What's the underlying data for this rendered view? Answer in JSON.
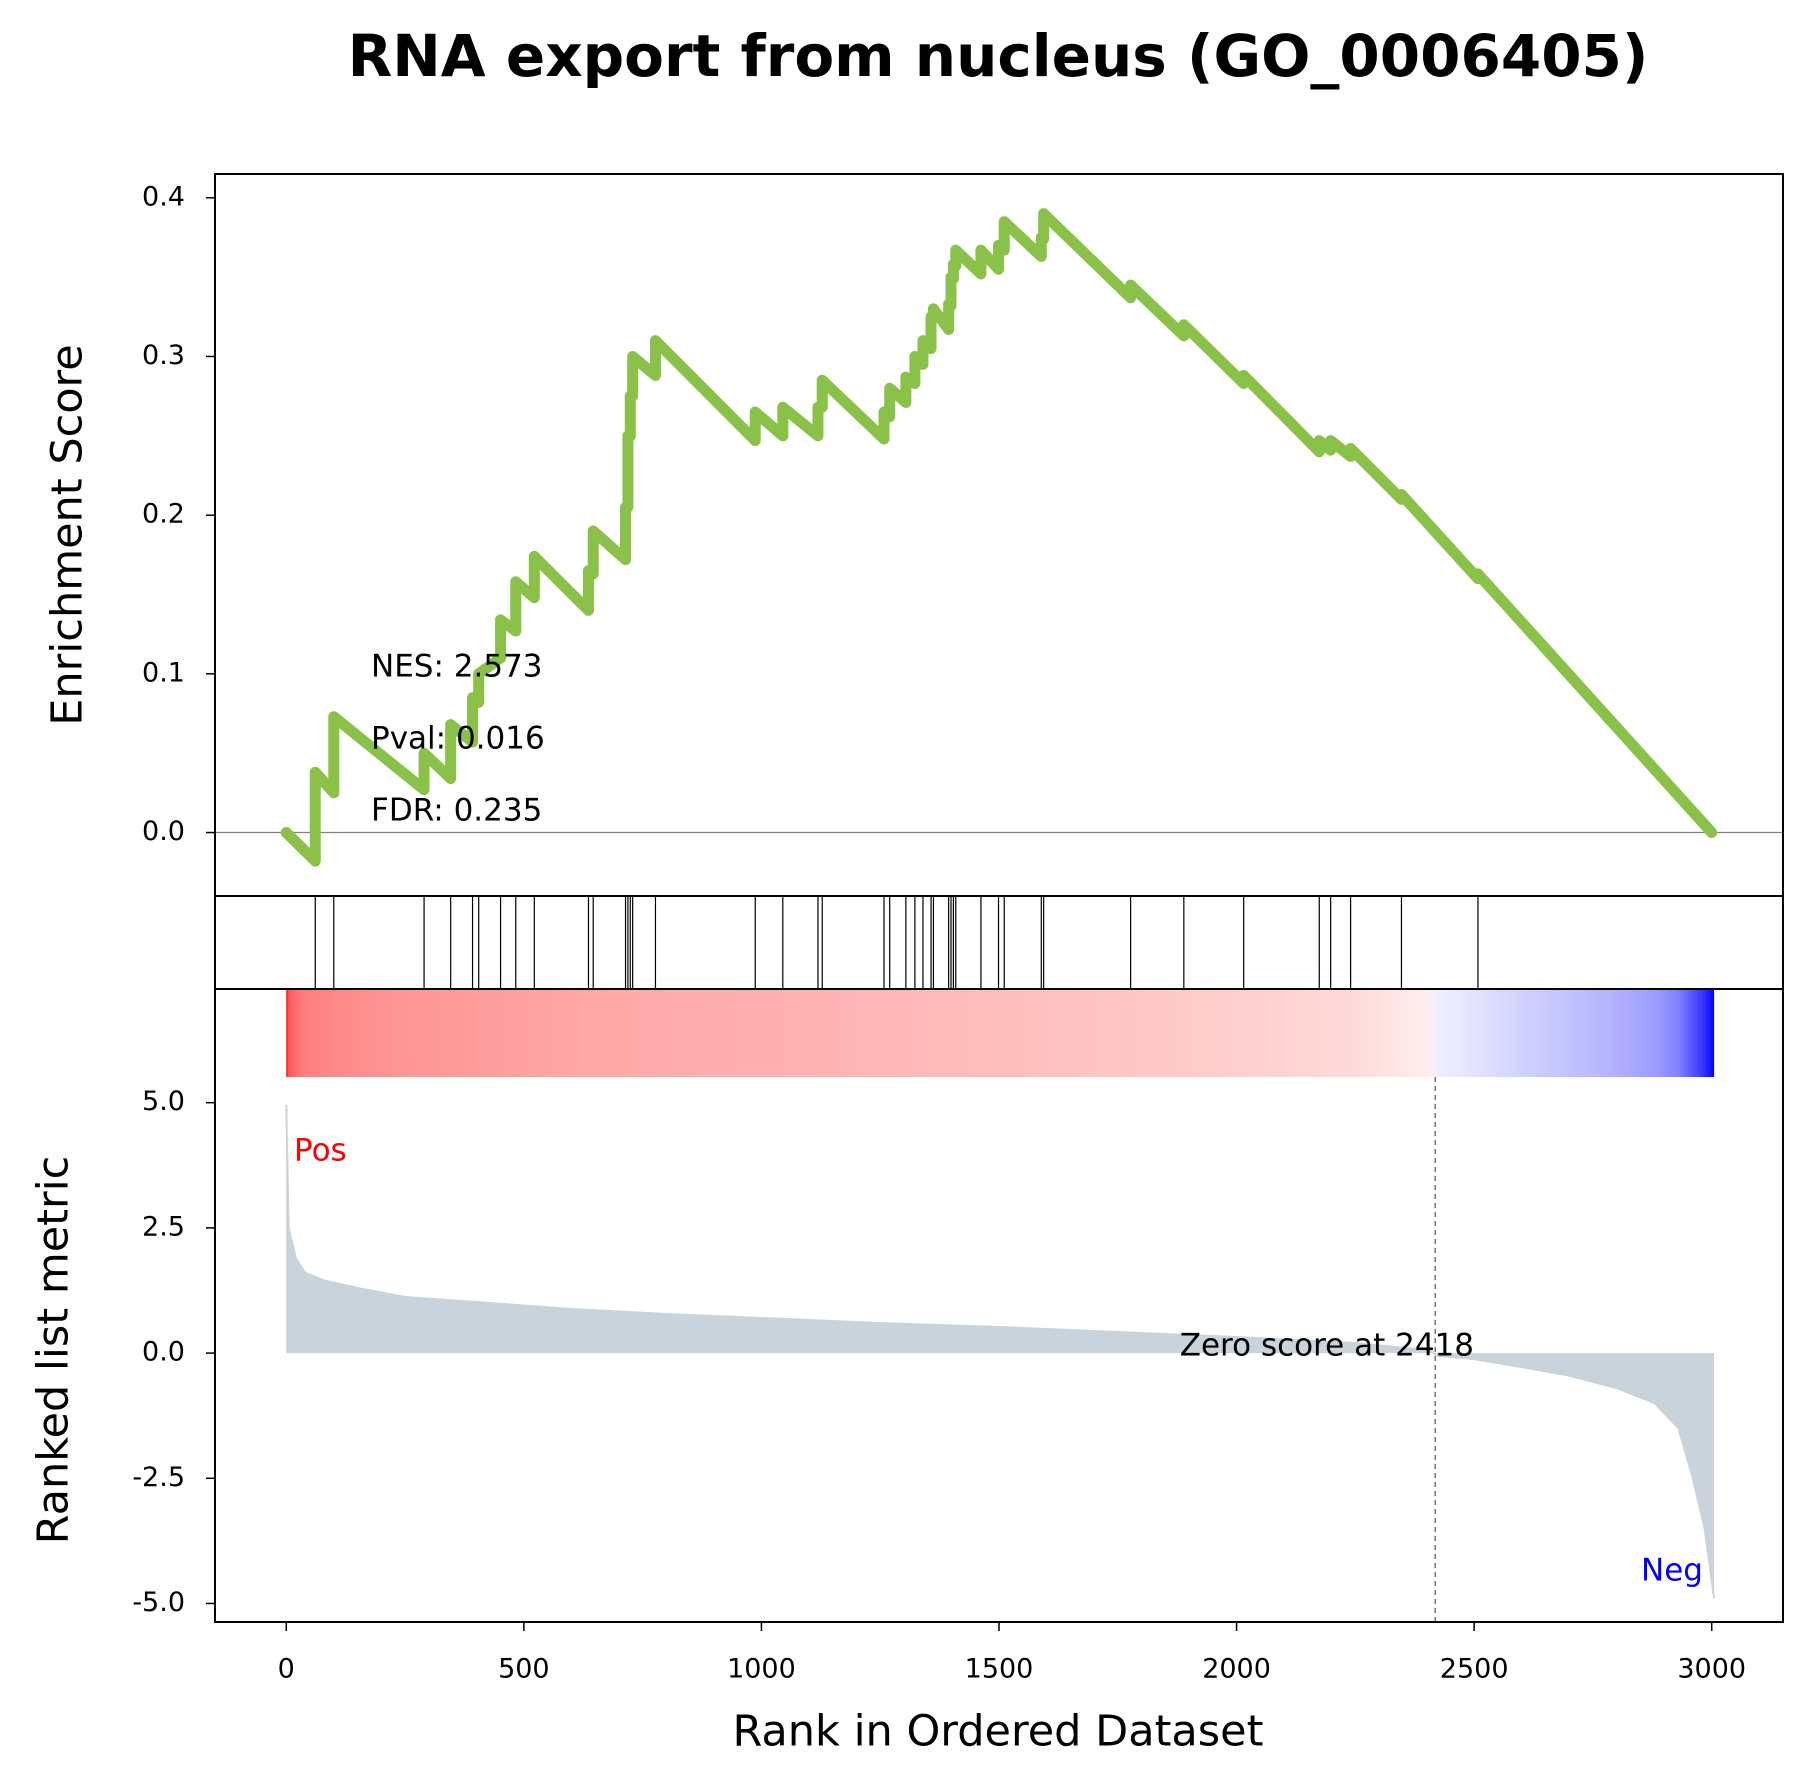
{
  "chart_data": {
    "type": "gsea",
    "title": "RNA export from nucleus (GO_0006405)",
    "xlabel": "Rank in Ordered Dataset",
    "xlim": [
      -150,
      3150
    ],
    "xticks": [
      0,
      500,
      1000,
      1500,
      2000,
      2500,
      3000
    ],
    "es": {
      "ylabel": "Enrichment Score",
      "color": "#8ac249",
      "ylim": [
        -0.04,
        0.415
      ],
      "yticks": [
        {
          "value": 0,
          "label": "0.0"
        },
        0.1,
        0.2,
        0.3,
        0.4
      ],
      "x": [
        0,
        61,
        61,
        100,
        100,
        290,
        290,
        346,
        346,
        392,
        392,
        405,
        405,
        451,
        451,
        483,
        483,
        522,
        522,
        636,
        636,
        646,
        646,
        714,
        714,
        719,
        719,
        724,
        724,
        729,
        729,
        777,
        777,
        987,
        987,
        1045,
        1045,
        1119,
        1119,
        1128,
        1128,
        1258,
        1258,
        1270,
        1270,
        1304,
        1304,
        1323,
        1323,
        1340,
        1340,
        1357,
        1357,
        1362,
        1362,
        1394,
        1394,
        1399,
        1399,
        1404,
        1404,
        1409,
        1409,
        1462,
        1462,
        1499,
        1499,
        1511,
        1511,
        1589,
        1589,
        1594,
        1594,
        1777,
        1777,
        1889,
        1889,
        2015,
        2015,
        2174,
        2174,
        2198,
        2198,
        2240,
        2240,
        2347,
        2347,
        2508,
        2508,
        3000
      ],
      "values": [
        0,
        -0.018,
        0.038,
        0.025,
        0.073,
        0.027,
        0.05,
        0.034,
        0.068,
        0.057,
        0.085,
        0.082,
        0.1,
        0.11,
        0.134,
        0.127,
        0.158,
        0.148,
        0.174,
        0.14,
        0.165,
        0.163,
        0.19,
        0.172,
        0.205,
        0.205,
        0.25,
        0.25,
        0.275,
        0.275,
        0.3,
        0.288,
        0.31,
        0.247,
        0.265,
        0.25,
        0.268,
        0.25,
        0.268,
        0.268,
        0.285,
        0.248,
        0.265,
        0.262,
        0.28,
        0.271,
        0.287,
        0.283,
        0.3,
        0.295,
        0.31,
        0.305,
        0.325,
        0.324,
        0.33,
        0.317,
        0.333,
        0.332,
        0.35,
        0.349,
        0.358,
        0.357,
        0.367,
        0.352,
        0.367,
        0.355,
        0.37,
        0.367,
        0.385,
        0.363,
        0.375,
        0.374,
        0.39,
        0.337,
        0.345,
        0.313,
        0.32,
        0.283,
        0.288,
        0.24,
        0.247,
        0.241,
        0.247,
        0.237,
        0.242,
        0.21,
        0.213,
        0.16,
        0.163,
        0
      ]
    },
    "annotations": [
      "NES: 2.573",
      "Pval: 0.016",
      "FDR: 0.235"
    ],
    "hits": [
      61,
      100,
      290,
      346,
      392,
      405,
      451,
      483,
      522,
      636,
      646,
      714,
      719,
      724,
      729,
      777,
      987,
      1045,
      1119,
      1128,
      1258,
      1270,
      1304,
      1323,
      1340,
      1357,
      1362,
      1394,
      1399,
      1404,
      1409,
      1462,
      1499,
      1511,
      1589,
      1594,
      1777,
      1889,
      2015,
      2174,
      2198,
      2240,
      2347,
      2508
    ],
    "metric": {
      "ylabel": "Ranked list metric",
      "color": "#c9d3dc",
      "colorbar": [
        "#ff0000",
        "#ffffff",
        "#0000ff"
      ],
      "ylim": [
        -5.37,
        7.27
      ],
      "yticks": [
        {
          "value": -5,
          "label": "-5.0"
        },
        -2.5,
        {
          "value": 0,
          "label": "0.0"
        },
        2.5,
        {
          "value": 5,
          "label": "5.0"
        }
      ],
      "x": [
        0,
        5,
        20,
        40,
        80,
        150,
        250,
        400,
        600,
        800,
        1000,
        1250,
        1500,
        1750,
        2000,
        2250,
        2410,
        2420,
        2500,
        2600,
        2700,
        2800,
        2880,
        2930,
        2960,
        2985,
        3005
      ],
      "values": [
        4.95,
        2.5,
        1.9,
        1.6,
        1.45,
        1.3,
        1.12,
        1.02,
        0.88,
        0.78,
        0.7,
        0.6,
        0.52,
        0.42,
        0.32,
        0.2,
        0.05,
        -0.05,
        -0.12,
        -0.28,
        -0.45,
        -0.7,
        -1.0,
        -1.5,
        -2.5,
        -3.5,
        -4.9
      ],
      "pos_label": "Pos",
      "neg_label": "Neg",
      "zero_rank": 2418,
      "zero_label": "Zero score at 2418"
    }
  }
}
